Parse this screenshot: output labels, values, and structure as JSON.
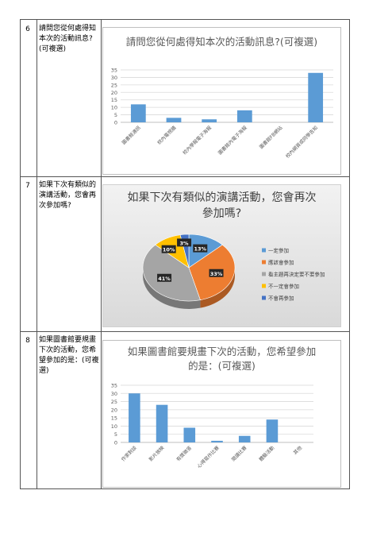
{
  "rows": [
    {
      "num": "6",
      "question": "請問您從何處得知本次的活動訊息?(可複選)"
    },
    {
      "num": "7",
      "question": "如果下次有類似的演講活動，您會再次參加嗎?"
    },
    {
      "num": "8",
      "question": "如果圖書館要規畫下次的活動，您希望參加的是：(可複選)"
    }
  ],
  "chart_data": [
    {
      "type": "bar",
      "title": "請問您從何處得知本次的活動訊息?(可複選)",
      "categories": [
        "圖書館通訊",
        "校內電視牆",
        "校內學報電子海報",
        "圖書館內電子海報",
        "圖書館FB網站",
        "校內網頁或同學告知"
      ],
      "values": [
        12,
        3,
        2,
        8,
        0,
        33
      ],
      "ylim": [
        0,
        35
      ],
      "yticks": [
        0,
        5,
        10,
        15,
        20,
        25,
        30,
        35
      ],
      "grid": true,
      "color": "#5b9bd5"
    },
    {
      "type": "pie",
      "title": "如果下次有類似的演講活動，您會再次參加嗎?",
      "labels": [
        "一定參加",
        "應該會參加",
        "看主題再決定要不要參加",
        "不一定會參加",
        "不會再參加"
      ],
      "values": [
        13,
        33,
        41,
        10,
        3
      ],
      "data_labels": [
        "13%",
        "33%",
        "41%",
        "10%",
        "3%"
      ],
      "colors": [
        "#5b9bd5",
        "#ed7d31",
        "#a5a5a5",
        "#ffc000",
        "#4472c4"
      ],
      "legend": "right"
    },
    {
      "type": "bar",
      "title": "如果圖書館要規畫下次的活動，您希望參加的是：(可複選)",
      "categories": [
        "作家對談",
        "影片放映",
        "有獎徵答",
        "心得寫作比賽",
        "閱讀比賽",
        "體驗活動",
        "其他"
      ],
      "values": [
        30,
        23,
        9,
        1,
        4,
        14,
        0
      ],
      "ylim": [
        0,
        35
      ],
      "yticks": [
        0,
        5,
        10,
        15,
        20,
        25,
        30,
        35
      ],
      "grid": true,
      "color": "#5b9bd5"
    }
  ]
}
